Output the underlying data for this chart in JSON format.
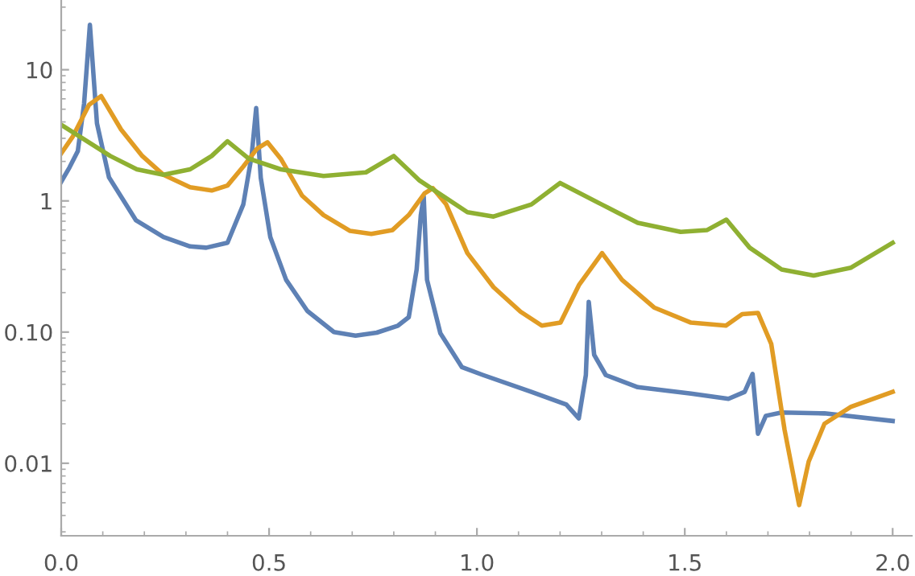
{
  "chart_data": {
    "type": "line",
    "log": "y",
    "grid": false,
    "marker": "none",
    "line_style": "solid",
    "xlim": [
      0,
      2.046
    ],
    "ylim": [
      0.0028,
      34
    ],
    "xticks": [
      {
        "value": 0,
        "label": "0.0"
      },
      0.5,
      {
        "value": 1,
        "label": "1.0"
      },
      1.5,
      {
        "value": 2,
        "label": "2.0"
      }
    ],
    "yticks": [
      {
        "value": 0.01,
        "label": "0.01"
      },
      {
        "value": 0.1,
        "label": "0.10"
      },
      1,
      10
    ],
    "series": [
      {
        "color": "#5e81b5",
        "x": [
          0,
          0.02,
          0.04,
          0.055,
          0.069,
          0.086,
          0.115,
          0.18,
          0.246,
          0.31,
          0.349,
          0.4,
          0.438,
          0.458,
          0.469,
          0.48,
          0.503,
          0.541,
          0.592,
          0.656,
          0.708,
          0.759,
          0.81,
          0.836,
          0.855,
          0.865,
          0.872,
          0.88,
          0.912,
          0.964,
          1.015,
          1.131,
          1.215,
          1.245,
          1.262,
          1.269,
          1.282,
          1.31,
          1.387,
          1.515,
          1.605,
          1.644,
          1.663,
          1.669,
          1.676,
          1.695,
          1.733,
          1.836,
          2.0
        ],
        "values": [
          1.4,
          1.8,
          2.4,
          5.5,
          22,
          3.9,
          1.51,
          0.71,
          0.53,
          0.45,
          0.44,
          0.48,
          0.94,
          2.2,
          5.1,
          1.5,
          0.53,
          0.25,
          0.145,
          0.1,
          0.094,
          0.099,
          0.112,
          0.13,
          0.3,
          0.78,
          1.08,
          0.25,
          0.098,
          0.054,
          0.047,
          0.035,
          0.028,
          0.022,
          0.047,
          0.17,
          0.067,
          0.047,
          0.038,
          0.034,
          0.031,
          0.035,
          0.048,
          0.03,
          0.0168,
          0.023,
          0.0244,
          0.024,
          0.021
        ]
      },
      {
        "color": "#e19c24",
        "x": [
          0,
          0.028,
          0.067,
          0.096,
          0.144,
          0.195,
          0.246,
          0.31,
          0.362,
          0.4,
          0.438,
          0.471,
          0.496,
          0.528,
          0.579,
          0.631,
          0.695,
          0.746,
          0.797,
          0.836,
          0.874,
          0.894,
          0.926,
          0.977,
          1.04,
          1.105,
          1.156,
          1.201,
          1.246,
          1.301,
          1.349,
          1.426,
          1.515,
          1.599,
          1.638,
          1.676,
          1.708,
          1.74,
          1.775,
          1.798,
          1.836,
          1.9,
          2.0
        ],
        "values": [
          2.3,
          3.1,
          5.4,
          6.3,
          3.5,
          2.2,
          1.58,
          1.27,
          1.2,
          1.31,
          1.83,
          2.5,
          2.8,
          2.1,
          1.1,
          0.78,
          0.59,
          0.56,
          0.6,
          0.78,
          1.14,
          1.25,
          0.94,
          0.4,
          0.22,
          0.143,
          0.112,
          0.118,
          0.23,
          0.4,
          0.25,
          0.154,
          0.118,
          0.112,
          0.137,
          0.14,
          0.081,
          0.018,
          0.0048,
          0.0103,
          0.02,
          0.027,
          0.035
        ]
      },
      {
        "color": "#8fb032",
        "x": [
          0,
          0.118,
          0.182,
          0.246,
          0.31,
          0.362,
          0.4,
          0.451,
          0.528,
          0.631,
          0.733,
          0.8,
          0.862,
          0.977,
          1.04,
          1.131,
          1.2,
          1.3,
          1.387,
          1.49,
          1.554,
          1.6,
          1.656,
          1.733,
          1.81,
          1.9,
          2.0
        ],
        "values": [
          3.8,
          2.2,
          1.74,
          1.58,
          1.74,
          2.2,
          2.85,
          2.1,
          1.74,
          1.55,
          1.65,
          2.2,
          1.43,
          0.82,
          0.76,
          0.94,
          1.37,
          0.94,
          0.68,
          0.58,
          0.6,
          0.72,
          0.44,
          0.3,
          0.27,
          0.31,
          0.48
        ]
      }
    ]
  }
}
